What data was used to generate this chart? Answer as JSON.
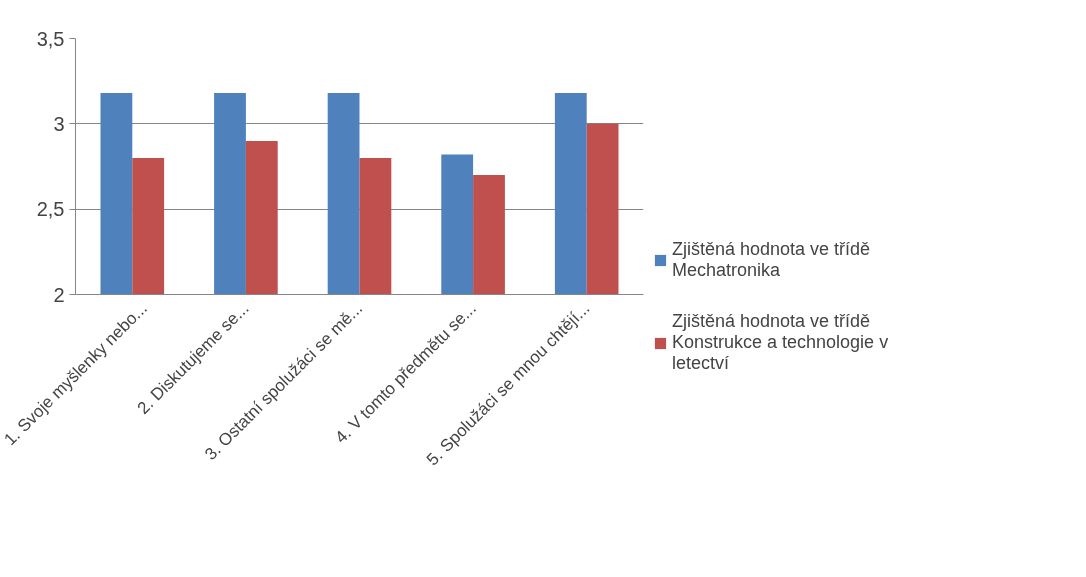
{
  "chart_data": {
    "type": "bar",
    "categories": [
      "1. Svoje myšlenky nebo...",
      "2. Diskutujeme se...",
      "3. Ostatní spolužáci se mě...",
      "4. V tomto předmětu se...",
      "5. Spolužáci se mnou chtějí..."
    ],
    "series": [
      {
        "name": "Zjištěná hodnota ve třídě Mechatronika",
        "color": "#4f81bd",
        "values": [
          3.18,
          3.18,
          3.18,
          2.82,
          3.18
        ]
      },
      {
        "name": "Zjištěná hodnota ve třídě Konstrukce a technologie v letectví",
        "color": "#c0504d",
        "values": [
          2.8,
          2.9,
          2.8,
          2.7,
          3.0
        ]
      }
    ],
    "ylim": [
      2,
      3.5
    ],
    "yticks": [
      2,
      {
        "value": 2.5,
        "label": "2,5"
      },
      3,
      {
        "value": 3.5,
        "label": "3,5"
      }
    ],
    "grid": "y",
    "legend": "right"
  }
}
